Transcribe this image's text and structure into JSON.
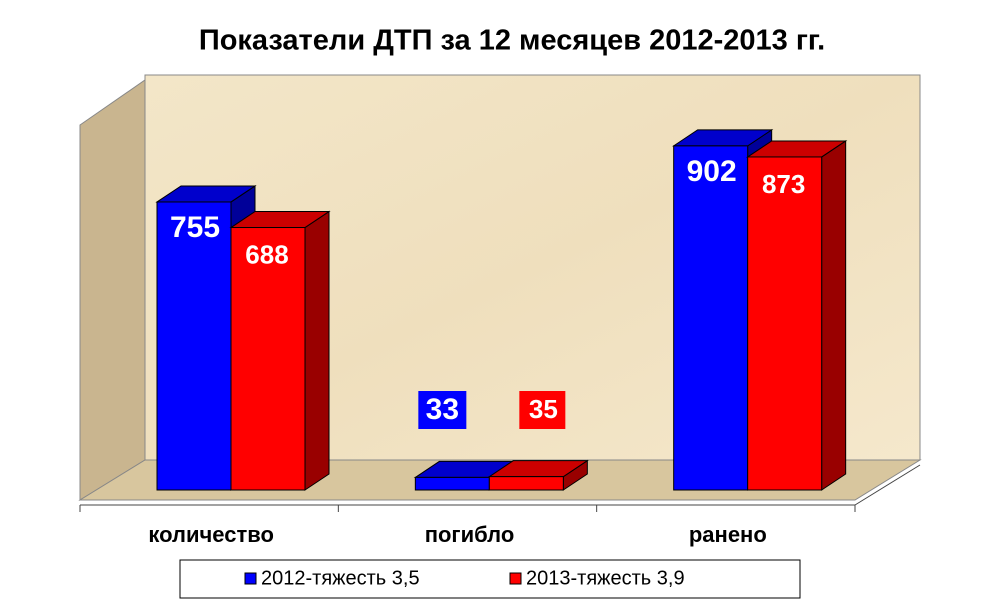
{
  "chart_data": {
    "type": "bar3d",
    "title": "Показатели ДТП за 12 месяцев  2012-2013 гг.",
    "categories": [
      "количество",
      "погибло",
      "ранено"
    ],
    "series": [
      {
        "name": "2012-тяжесть 3,5",
        "color": "#0000ff",
        "values": [
          755,
          33,
          902
        ]
      },
      {
        "name": "2013-тяжесть 3,9",
        "color": "#ff0000",
        "values": [
          688,
          35,
          873
        ]
      }
    ]
  }
}
